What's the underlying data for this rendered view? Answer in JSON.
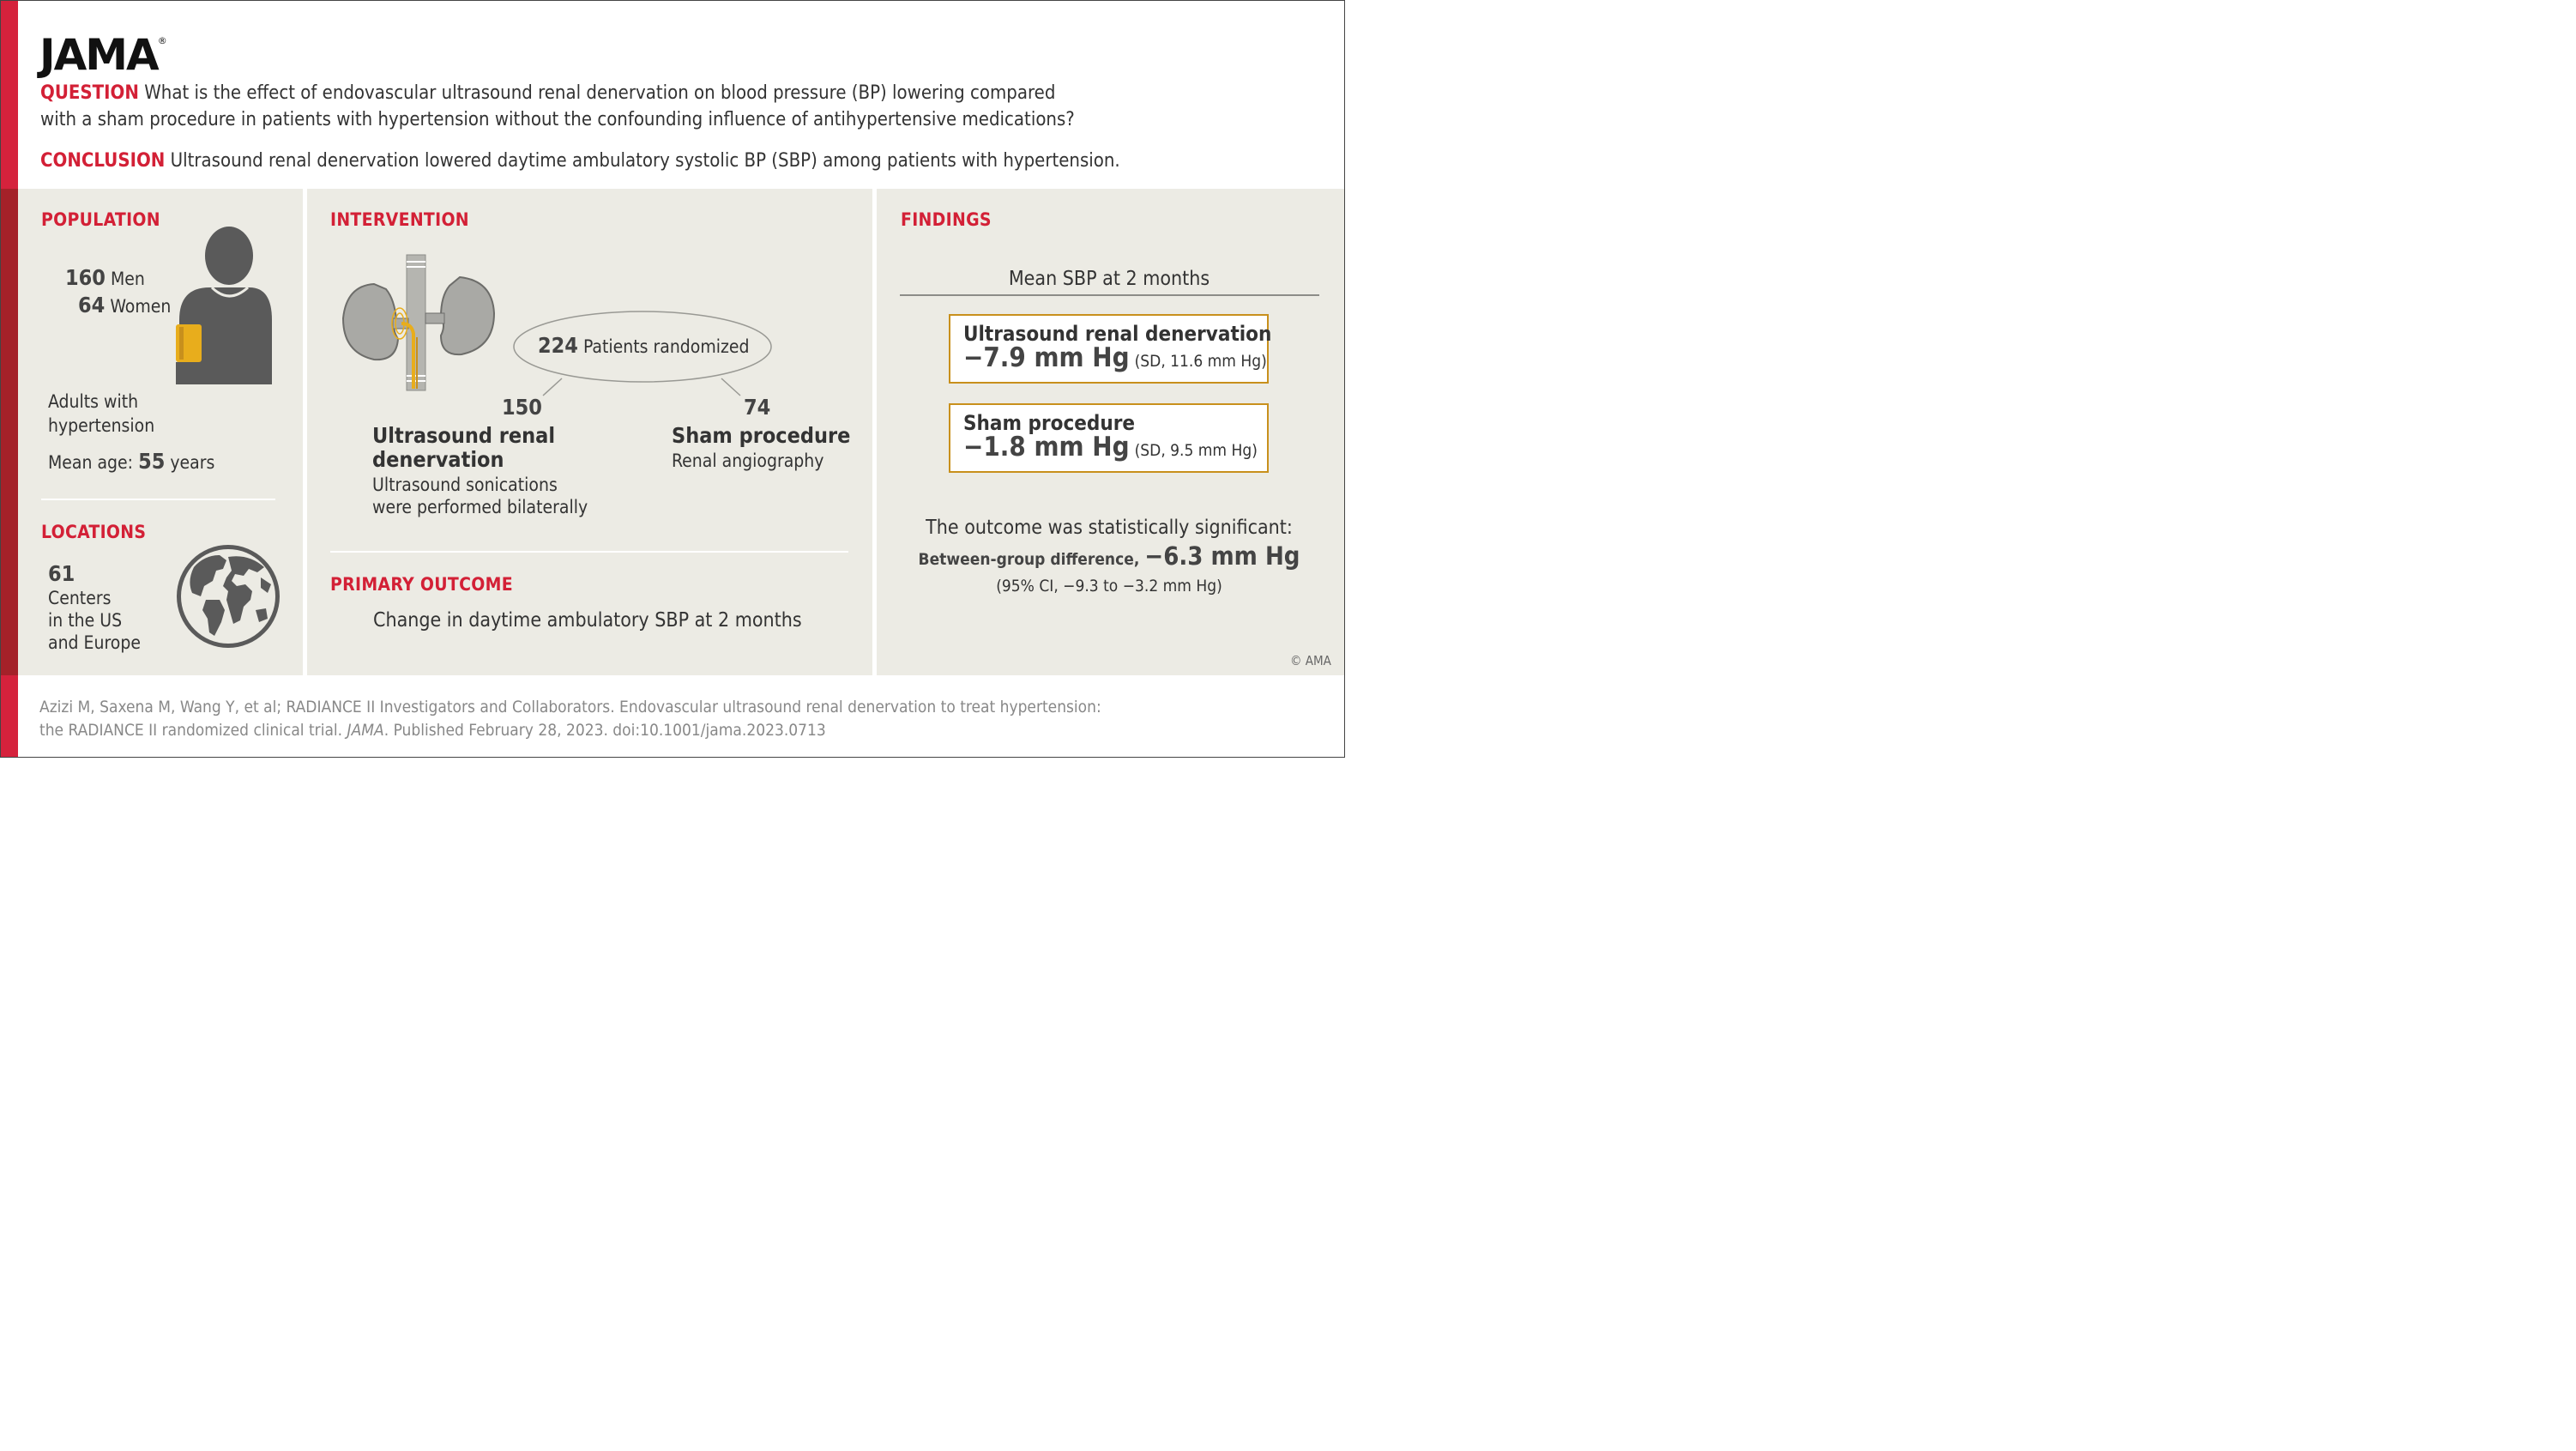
{
  "brand": {
    "name": "JAMA",
    "reg": "®"
  },
  "question": {
    "tag": "QUESTION",
    "line1": "What is the effect of endovascular ultrasound renal denervation on blood pressure (BP) lowering compared",
    "line2": "with a sham procedure in patients with hypertension without the confounding influence of antihypertensive medications?"
  },
  "conclusion": {
    "tag": "CONCLUSION",
    "text": "Ultrasound renal denervation lowered daytime ambulatory systolic BP (SBP) among patients with hypertension."
  },
  "population": {
    "title": "POPULATION",
    "men_count": "160",
    "men_label": "Men",
    "women_count": "64",
    "women_label": "Women",
    "desc1": "Adults with",
    "desc2": "hypertension",
    "age_label": "Mean age:",
    "age_value": "55",
    "age_unit": "years"
  },
  "locations": {
    "title": "LOCATIONS",
    "count": "61",
    "line1": "Centers",
    "line2": "in the US",
    "line3": "and Europe"
  },
  "intervention": {
    "title": "INTERVENTION",
    "randomized_count": "224",
    "randomized_label": "Patients randomized",
    "arm1": {
      "count": "150",
      "name1": "Ultrasound renal",
      "name2": "denervation",
      "desc1": "Ultrasound sonications",
      "desc2": "were performed bilaterally"
    },
    "arm2": {
      "count": "74",
      "name": "Sham procedure",
      "desc": "Renal angiography"
    }
  },
  "primary_outcome": {
    "title": "PRIMARY OUTCOME",
    "text": "Change in daytime ambulatory SBP at 2 months"
  },
  "findings": {
    "title": "FINDINGS",
    "subtitle": "Mean SBP at 2 months",
    "group1": {
      "name": "Ultrasound renal denervation",
      "value": "−7.9 mm Hg",
      "sd": "(SD, 11.6 mm Hg)"
    },
    "group2": {
      "name": "Sham procedure",
      "value": "−1.8 mm Hg",
      "sd": "(SD, 9.5 mm Hg)"
    },
    "significance": "The outcome was statistically significant:",
    "diff_label": "Between-group difference,",
    "diff_value": "−6.3 mm Hg",
    "ci": "(95% CI, −9.3 to −3.2 mm Hg)",
    "copyright": "© AMA"
  },
  "citation": {
    "line1": "Azizi M, Saxena M, Wang Y, et al; RADIANCE II Investigators and Collaborators. Endovascular ultrasound renal denervation to treat hypertension:",
    "line2_pre": "the RADIANCE II randomized clinical trial.",
    "line2_journal": "JAMA",
    "line2_post": ". Published February 28, 2023. doi:10.1001/jama.2023.0713"
  },
  "colors": {
    "accent_red": "#d32036",
    "dark_red": "#a42129",
    "gold": "#c8901c",
    "panel_bg": "#ecebe4",
    "icon_gray": "#5a5a5a"
  }
}
